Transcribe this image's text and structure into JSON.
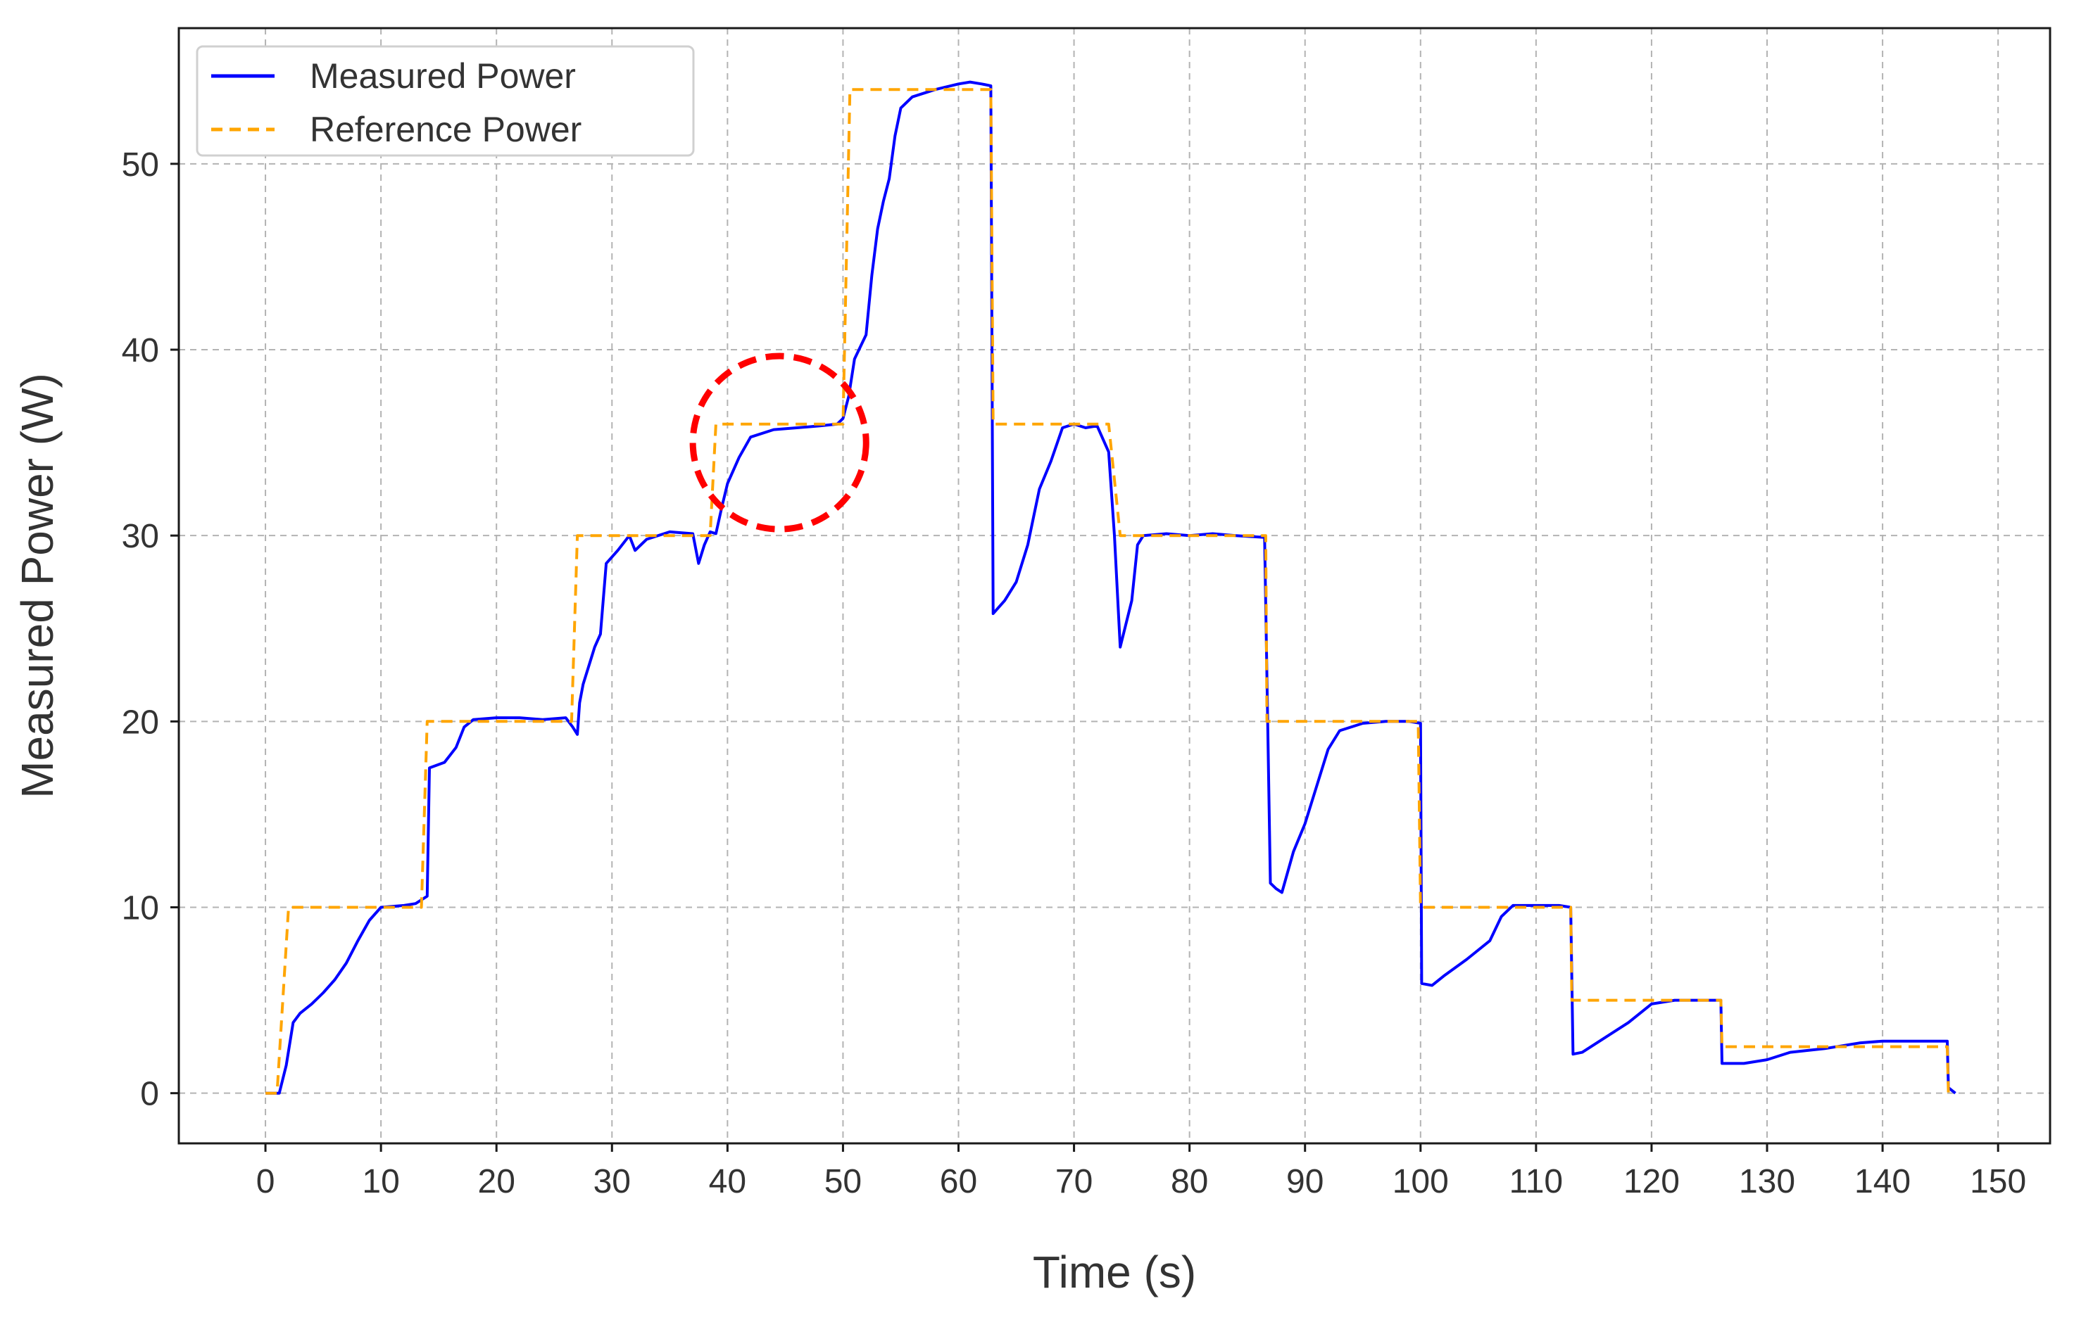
{
  "chart_data": {
    "type": "line",
    "title": "",
    "xlabel": "Time (s)",
    "ylabel": "Measured Power (W)",
    "xlim": [
      -7.5,
      154.5
    ],
    "ylim": [
      -2.7,
      57.3
    ],
    "xticks": [
      0,
      10,
      20,
      30,
      40,
      50,
      60,
      70,
      80,
      90,
      100,
      110,
      120,
      130,
      140,
      150
    ],
    "yticks": [
      0,
      10,
      20,
      30,
      40,
      50
    ],
    "grid": true,
    "legend_position": "top-left",
    "series": [
      {
        "name": "Measured Power",
        "color": "#0000ff",
        "style": "solid",
        "points": [
          [
            0,
            0
          ],
          [
            1.2,
            0
          ],
          [
            1.8,
            1.5
          ],
          [
            2.4,
            3.8
          ],
          [
            3,
            4.3
          ],
          [
            4,
            4.8
          ],
          [
            5,
            5.4
          ],
          [
            6,
            6.1
          ],
          [
            7,
            7
          ],
          [
            8,
            8.2
          ],
          [
            9,
            9.3
          ],
          [
            10,
            10
          ],
          [
            12,
            10.1
          ],
          [
            13,
            10.2
          ],
          [
            14,
            10.6
          ],
          [
            14.2,
            17.5
          ],
          [
            15.5,
            17.8
          ],
          [
            16.5,
            18.6
          ],
          [
            17.2,
            19.7
          ],
          [
            18,
            20.1
          ],
          [
            20,
            20.2
          ],
          [
            22,
            20.2
          ],
          [
            24,
            20.1
          ],
          [
            26,
            20.2
          ],
          [
            26.6,
            19.7
          ],
          [
            27,
            19.3
          ],
          [
            27.2,
            21
          ],
          [
            27.5,
            22
          ],
          [
            28,
            23
          ],
          [
            28.5,
            24
          ],
          [
            29,
            24.7
          ],
          [
            29.5,
            28.5
          ],
          [
            30.5,
            29.2
          ],
          [
            31.5,
            30
          ],
          [
            32,
            29.2
          ],
          [
            33,
            29.8
          ],
          [
            35,
            30.2
          ],
          [
            37,
            30.1
          ],
          [
            37.5,
            28.5
          ],
          [
            38,
            29.5
          ],
          [
            38.5,
            30.2
          ],
          [
            39,
            30.1
          ],
          [
            39.5,
            31.5
          ],
          [
            40,
            32.8
          ],
          [
            41,
            34.2
          ],
          [
            42,
            35.3
          ],
          [
            44,
            35.7
          ],
          [
            46,
            35.8
          ],
          [
            48,
            35.9
          ],
          [
            49.5,
            36
          ],
          [
            50,
            36.3
          ],
          [
            50.5,
            37.5
          ],
          [
            51,
            39.5
          ],
          [
            52,
            40.8
          ],
          [
            52.5,
            44
          ],
          [
            53,
            46.5
          ],
          [
            53.5,
            48
          ],
          [
            54,
            49.2
          ],
          [
            54.5,
            51.5
          ],
          [
            55,
            53
          ],
          [
            56,
            53.6
          ],
          [
            58,
            54
          ],
          [
            60,
            54.3
          ],
          [
            61,
            54.4
          ],
          [
            62,
            54.3
          ],
          [
            62.8,
            54.2
          ],
          [
            63,
            25.8
          ],
          [
            64,
            26.5
          ],
          [
            65,
            27.5
          ],
          [
            66,
            29.5
          ],
          [
            66.5,
            31
          ],
          [
            67,
            32.5
          ],
          [
            68,
            34
          ],
          [
            69,
            35.8
          ],
          [
            70,
            36
          ],
          [
            71,
            35.8
          ],
          [
            72,
            35.9
          ],
          [
            73,
            34.5
          ],
          [
            73.5,
            30
          ],
          [
            74,
            24
          ],
          [
            75,
            26.5
          ],
          [
            75.5,
            29.5
          ],
          [
            76,
            30
          ],
          [
            78,
            30.1
          ],
          [
            80,
            30
          ],
          [
            82,
            30.1
          ],
          [
            84,
            30
          ],
          [
            86.5,
            29.9
          ],
          [
            87,
            11.3
          ],
          [
            87.5,
            11
          ],
          [
            88,
            10.8
          ],
          [
            89,
            13
          ],
          [
            90,
            14.5
          ],
          [
            91,
            16.5
          ],
          [
            92,
            18.5
          ],
          [
            93,
            19.5
          ],
          [
            95,
            19.9
          ],
          [
            97,
            20
          ],
          [
            99,
            20
          ],
          [
            100,
            19.9
          ],
          [
            100.1,
            5.9
          ],
          [
            101,
            5.8
          ],
          [
            102,
            6.3
          ],
          [
            104,
            7.2
          ],
          [
            106,
            8.2
          ],
          [
            107,
            9.5
          ],
          [
            108,
            10.1
          ],
          [
            110,
            10.1
          ],
          [
            112,
            10.1
          ],
          [
            113,
            10
          ],
          [
            113.2,
            2.1
          ],
          [
            114,
            2.2
          ],
          [
            116,
            3
          ],
          [
            118,
            3.8
          ],
          [
            120,
            4.8
          ],
          [
            122,
            5
          ],
          [
            124,
            5
          ],
          [
            126,
            5
          ],
          [
            126.1,
            1.6
          ],
          [
            128,
            1.6
          ],
          [
            130,
            1.8
          ],
          [
            132,
            2.2
          ],
          [
            135,
            2.4
          ],
          [
            138,
            2.7
          ],
          [
            140,
            2.8
          ],
          [
            143,
            2.8
          ],
          [
            145.6,
            2.8
          ],
          [
            145.7,
            0.3
          ],
          [
            146.3,
            0
          ]
        ]
      },
      {
        "name": "Reference Power",
        "color": "#ffa500",
        "style": "dashed",
        "points": [
          [
            0,
            0
          ],
          [
            1,
            0
          ],
          [
            2,
            10
          ],
          [
            13.5,
            10
          ],
          [
            14,
            20
          ],
          [
            26.5,
            20
          ],
          [
            27,
            30
          ],
          [
            38.5,
            30
          ],
          [
            39,
            36
          ],
          [
            50,
            36
          ],
          [
            50.6,
            54
          ],
          [
            62.8,
            54
          ],
          [
            63,
            36
          ],
          [
            73,
            36
          ],
          [
            74,
            30
          ],
          [
            86.6,
            30
          ],
          [
            86.7,
            20
          ],
          [
            99.8,
            20
          ],
          [
            100,
            10
          ],
          [
            113,
            10
          ],
          [
            113.1,
            5
          ],
          [
            126,
            5
          ],
          [
            126.1,
            2.5
          ],
          [
            145.6,
            2.5
          ],
          [
            145.7,
            0
          ]
        ]
      }
    ],
    "annotations": [
      {
        "type": "circle",
        "style": "dashed",
        "color": "#ff0000",
        "center": [
          44.5,
          35
        ],
        "radius_units": 7.5
      }
    ]
  }
}
